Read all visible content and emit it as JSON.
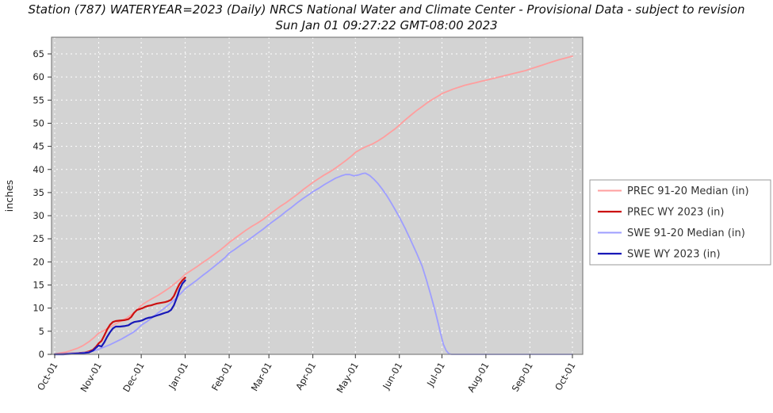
{
  "header": {
    "title": "Station (787) WATERYEAR=2023 (Daily) NRCS National Water and Climate Center - Provisional Data - subject to revision",
    "subtitle": "Sun Jan 01 09:27:22 GMT-08:00 2023"
  },
  "chart_data": {
    "type": "line",
    "title": "Station (787) WATERYEAR=2023 (Daily) NRCS National Water and Climate Center - Provisional Data - subject to revision",
    "subtitle": "Sun Jan 01 09:27:22 GMT-08:00 2023",
    "ylabel": "inches",
    "ylim": [
      0,
      68.5
    ],
    "yticks": [
      0,
      5,
      10,
      15,
      20,
      25,
      30,
      35,
      40,
      45,
      50,
      55,
      60,
      65
    ],
    "x_unit": "days since Oct 1",
    "xlim": [
      0,
      365
    ],
    "xticks": [
      {
        "label": "Oct-01",
        "day": 0
      },
      {
        "label": "Nov-01",
        "day": 31
      },
      {
        "label": "Dec-01",
        "day": 61
      },
      {
        "label": "Jan-01",
        "day": 92
      },
      {
        "label": "Feb-01",
        "day": 123
      },
      {
        "label": "Mar-01",
        "day": 151
      },
      {
        "label": "Apr-01",
        "day": 182
      },
      {
        "label": "May-01",
        "day": 212
      },
      {
        "label": "Jun-01",
        "day": 243
      },
      {
        "label": "Jul-01",
        "day": 273
      },
      {
        "label": "Aug-01",
        "day": 304
      },
      {
        "label": "Sep-01",
        "day": 335
      },
      {
        "label": "Oct-01",
        "day": 365
      }
    ],
    "grid": true,
    "legend_position": "right",
    "plot_bg": "#d3d3d3",
    "grid_color": "#ffffff",
    "border_color": "#808080",
    "tick_color": "#333333",
    "label_color": "#222222",
    "legend_text_color": "#333333",
    "series": [
      {
        "id": "prec-median",
        "name": "PREC 91-20 Median (in)",
        "color": "#ff9e9e",
        "width": 1.8,
        "points": [
          [
            0,
            0
          ],
          [
            4,
            0.3
          ],
          [
            8,
            0.5
          ],
          [
            12,
            0.9
          ],
          [
            16,
            1.3
          ],
          [
            20,
            1.9
          ],
          [
            24,
            2.7
          ],
          [
            28,
            3.7
          ],
          [
            31,
            4.6
          ],
          [
            35,
            5.2
          ],
          [
            39,
            5.9
          ],
          [
            43,
            6.6
          ],
          [
            47,
            7.2
          ],
          [
            51,
            7.9
          ],
          [
            55,
            8.8
          ],
          [
            58,
            9.6
          ],
          [
            61,
            10.6
          ],
          [
            65,
            11.4
          ],
          [
            69,
            12.1
          ],
          [
            73,
            12.8
          ],
          [
            77,
            13.6
          ],
          [
            81,
            14.4
          ],
          [
            85,
            15.4
          ],
          [
            89,
            16.4
          ],
          [
            92,
            17.3
          ],
          [
            96,
            18.1
          ],
          [
            100,
            18.9
          ],
          [
            104,
            19.8
          ],
          [
            108,
            20.6
          ],
          [
            112,
            21.5
          ],
          [
            116,
            22.4
          ],
          [
            120,
            23.4
          ],
          [
            123,
            24.2
          ],
          [
            127,
            25.1
          ],
          [
            131,
            26.0
          ],
          [
            135,
            26.9
          ],
          [
            139,
            27.7
          ],
          [
            143,
            28.4
          ],
          [
            147,
            29.2
          ],
          [
            151,
            30.2
          ],
          [
            155,
            31.1
          ],
          [
            159,
            32.0
          ],
          [
            163,
            32.8
          ],
          [
            167,
            33.7
          ],
          [
            171,
            34.6
          ],
          [
            175,
            35.6
          ],
          [
            179,
            36.5
          ],
          [
            182,
            37.2
          ],
          [
            186,
            38.0
          ],
          [
            190,
            38.8
          ],
          [
            194,
            39.5
          ],
          [
            198,
            40.3
          ],
          [
            202,
            41.2
          ],
          [
            206,
            42.1
          ],
          [
            210,
            43.1
          ],
          [
            212,
            43.7
          ],
          [
            216,
            44.4
          ],
          [
            220,
            45.0
          ],
          [
            224,
            45.5
          ],
          [
            228,
            46.2
          ],
          [
            232,
            47.0
          ],
          [
            236,
            47.9
          ],
          [
            240,
            48.8
          ],
          [
            243,
            49.6
          ],
          [
            247,
            50.7
          ],
          [
            251,
            51.7
          ],
          [
            255,
            52.7
          ],
          [
            259,
            53.6
          ],
          [
            263,
            54.5
          ],
          [
            267,
            55.3
          ],
          [
            271,
            56.0
          ],
          [
            273,
            56.4
          ],
          [
            277,
            56.9
          ],
          [
            281,
            57.4
          ],
          [
            285,
            57.8
          ],
          [
            289,
            58.2
          ],
          [
            293,
            58.5
          ],
          [
            297,
            58.8
          ],
          [
            301,
            59.1
          ],
          [
            304,
            59.3
          ],
          [
            308,
            59.6
          ],
          [
            312,
            59.9
          ],
          [
            316,
            60.2
          ],
          [
            320,
            60.5
          ],
          [
            324,
            60.8
          ],
          [
            328,
            61.1
          ],
          [
            332,
            61.4
          ],
          [
            335,
            61.7
          ],
          [
            339,
            62.1
          ],
          [
            343,
            62.5
          ],
          [
            347,
            62.9
          ],
          [
            351,
            63.3
          ],
          [
            355,
            63.7
          ],
          [
            359,
            64.0
          ],
          [
            365,
            64.5
          ]
        ]
      },
      {
        "id": "prec-wy2023",
        "name": "PREC WY 2023  (in)",
        "color": "#cc1010",
        "width": 2.2,
        "points": [
          [
            0,
            0
          ],
          [
            6,
            0.1
          ],
          [
            12,
            0.2
          ],
          [
            17,
            0.3
          ],
          [
            21,
            0.4
          ],
          [
            24,
            0.6
          ],
          [
            27,
            1.0
          ],
          [
            29,
            1.6
          ],
          [
            31,
            2.4
          ],
          [
            33,
            2.9
          ],
          [
            35,
            4.1
          ],
          [
            37,
            5.4
          ],
          [
            39,
            6.4
          ],
          [
            41,
            7.0
          ],
          [
            43,
            7.2
          ],
          [
            46,
            7.3
          ],
          [
            49,
            7.4
          ],
          [
            52,
            7.6
          ],
          [
            54,
            8.1
          ],
          [
            56,
            9.0
          ],
          [
            58,
            9.6
          ],
          [
            60,
            9.8
          ],
          [
            62,
            10.0
          ],
          [
            64,
            10.3
          ],
          [
            66,
            10.5
          ],
          [
            68,
            10.6
          ],
          [
            70,
            10.8
          ],
          [
            72,
            11.0
          ],
          [
            74,
            11.1
          ],
          [
            76,
            11.2
          ],
          [
            78,
            11.3
          ],
          [
            80,
            11.5
          ],
          [
            82,
            11.8
          ],
          [
            84,
            12.6
          ],
          [
            86,
            14.0
          ],
          [
            88,
            15.2
          ],
          [
            90,
            16.0
          ],
          [
            92,
            16.6
          ]
        ]
      },
      {
        "id": "swe-median",
        "name": "SWE 91-20 Median (in)",
        "color": "#9e9eff",
        "width": 1.8,
        "points": [
          [
            0,
            0
          ],
          [
            6,
            0.1
          ],
          [
            12,
            0.2
          ],
          [
            18,
            0.3
          ],
          [
            24,
            0.5
          ],
          [
            28,
            0.8
          ],
          [
            31,
            1.1
          ],
          [
            35,
            1.6
          ],
          [
            39,
            2.1
          ],
          [
            43,
            2.7
          ],
          [
            47,
            3.3
          ],
          [
            51,
            4.0
          ],
          [
            55,
            4.7
          ],
          [
            58,
            5.4
          ],
          [
            61,
            6.3
          ],
          [
            65,
            7.1
          ],
          [
            69,
            8.0
          ],
          [
            73,
            9.0
          ],
          [
            77,
            9.9
          ],
          [
            81,
            10.9
          ],
          [
            85,
            12.0
          ],
          [
            89,
            13.2
          ],
          [
            92,
            14.2
          ],
          [
            96,
            15.1
          ],
          [
            100,
            16.0
          ],
          [
            104,
            17.0
          ],
          [
            108,
            17.9
          ],
          [
            112,
            18.9
          ],
          [
            116,
            19.9
          ],
          [
            120,
            20.9
          ],
          [
            123,
            21.9
          ],
          [
            127,
            22.7
          ],
          [
            131,
            23.6
          ],
          [
            135,
            24.4
          ],
          [
            139,
            25.3
          ],
          [
            143,
            26.2
          ],
          [
            147,
            27.1
          ],
          [
            151,
            28.1
          ],
          [
            155,
            29.0
          ],
          [
            159,
            29.9
          ],
          [
            163,
            30.9
          ],
          [
            167,
            31.8
          ],
          [
            171,
            32.8
          ],
          [
            175,
            33.7
          ],
          [
            179,
            34.5
          ],
          [
            182,
            35.2
          ],
          [
            186,
            35.9
          ],
          [
            190,
            36.7
          ],
          [
            194,
            37.4
          ],
          [
            198,
            38.1
          ],
          [
            202,
            38.6
          ],
          [
            205,
            38.9
          ],
          [
            208,
            38.9
          ],
          [
            211,
            38.6
          ],
          [
            214,
            38.8
          ],
          [
            217,
            39.1
          ],
          [
            219,
            39.2
          ],
          [
            222,
            38.7
          ],
          [
            225,
            37.9
          ],
          [
            228,
            36.9
          ],
          [
            231,
            35.7
          ],
          [
            234,
            34.4
          ],
          [
            237,
            32.9
          ],
          [
            240,
            31.3
          ],
          [
            243,
            29.7
          ],
          [
            247,
            27.3
          ],
          [
            251,
            24.7
          ],
          [
            255,
            22.0
          ],
          [
            259,
            19.1
          ],
          [
            262,
            16.2
          ],
          [
            265,
            13.0
          ],
          [
            268,
            9.6
          ],
          [
            270,
            7.2
          ],
          [
            272,
            4.6
          ],
          [
            274,
            2.2
          ],
          [
            276,
            0.8
          ],
          [
            278,
            0.1
          ],
          [
            280,
            0
          ],
          [
            290,
            0
          ],
          [
            300,
            0
          ],
          [
            310,
            0
          ],
          [
            320,
            0
          ],
          [
            330,
            0
          ],
          [
            340,
            0
          ],
          [
            350,
            0
          ],
          [
            365,
            0
          ]
        ]
      },
      {
        "id": "swe-wy2023",
        "name": "SWE WY 2023  (in)",
        "color": "#1818b8",
        "width": 2.2,
        "points": [
          [
            0,
            0
          ],
          [
            6,
            0
          ],
          [
            12,
            0.1
          ],
          [
            17,
            0.2
          ],
          [
            21,
            0.3
          ],
          [
            24,
            0.4
          ],
          [
            27,
            0.8
          ],
          [
            29,
            1.4
          ],
          [
            31,
            1.9
          ],
          [
            33,
            1.7
          ],
          [
            35,
            2.6
          ],
          [
            37,
            3.8
          ],
          [
            39,
            4.8
          ],
          [
            41,
            5.6
          ],
          [
            43,
            6.0
          ],
          [
            46,
            6.0
          ],
          [
            49,
            6.1
          ],
          [
            52,
            6.3
          ],
          [
            54,
            6.7
          ],
          [
            56,
            7.0
          ],
          [
            58,
            7.1
          ],
          [
            60,
            7.2
          ],
          [
            62,
            7.4
          ],
          [
            64,
            7.7
          ],
          [
            66,
            7.9
          ],
          [
            68,
            8.0
          ],
          [
            70,
            8.2
          ],
          [
            72,
            8.4
          ],
          [
            74,
            8.6
          ],
          [
            76,
            8.8
          ],
          [
            78,
            9.0
          ],
          [
            80,
            9.2
          ],
          [
            82,
            9.6
          ],
          [
            84,
            10.6
          ],
          [
            86,
            12.2
          ],
          [
            88,
            14.0
          ],
          [
            90,
            15.3
          ],
          [
            92,
            16.0
          ]
        ]
      }
    ]
  }
}
